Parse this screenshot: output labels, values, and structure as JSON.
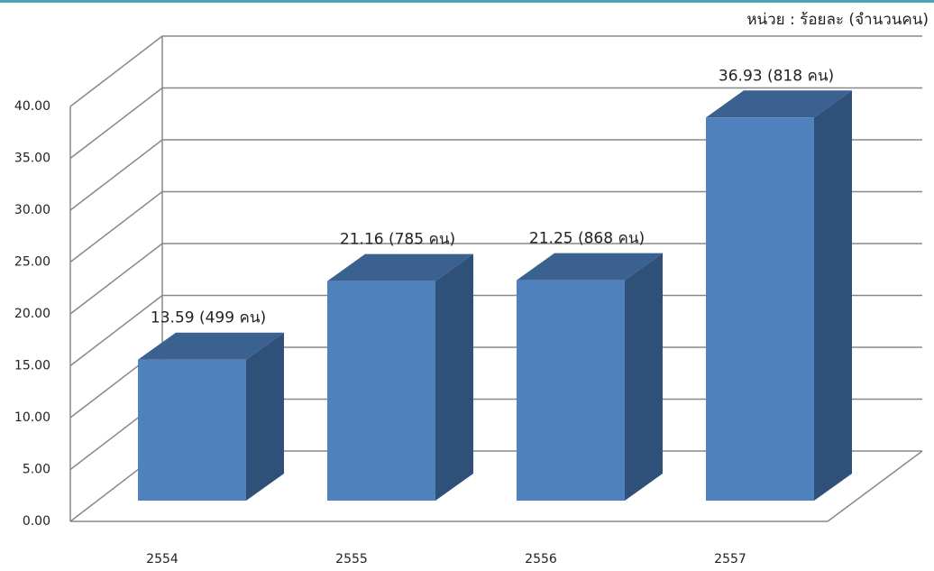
{
  "chart_data": {
    "type": "bar3d",
    "subtitle": "หน่วย : ร้อยละ (จำนวนคน)",
    "categories": [
      "2554",
      "2555",
      "2556",
      "2557"
    ],
    "values": [
      13.59,
      21.16,
      21.25,
      36.93
    ],
    "value_labels": [
      "13.59 (499 คน)",
      "21.16 (785 คน)",
      "21.25 (868 คน)",
      "36.93 (818 คน)"
    ],
    "color": "#4f81bd",
    "ylim": [
      0,
      40
    ],
    "yticks": [
      {
        "value": 0,
        "label": "0.00"
      },
      {
        "value": 5,
        "label": "5.00"
      },
      {
        "value": 10,
        "label": "10.00"
      },
      {
        "value": 15,
        "label": "15.00"
      },
      {
        "value": 20,
        "label": "20.00"
      },
      {
        "value": 25,
        "label": "25.00"
      },
      {
        "value": 30,
        "label": "30.00"
      },
      {
        "value": 35,
        "label": "35.00"
      },
      {
        "value": 40,
        "label": "40.00"
      }
    ],
    "grid": true
  }
}
